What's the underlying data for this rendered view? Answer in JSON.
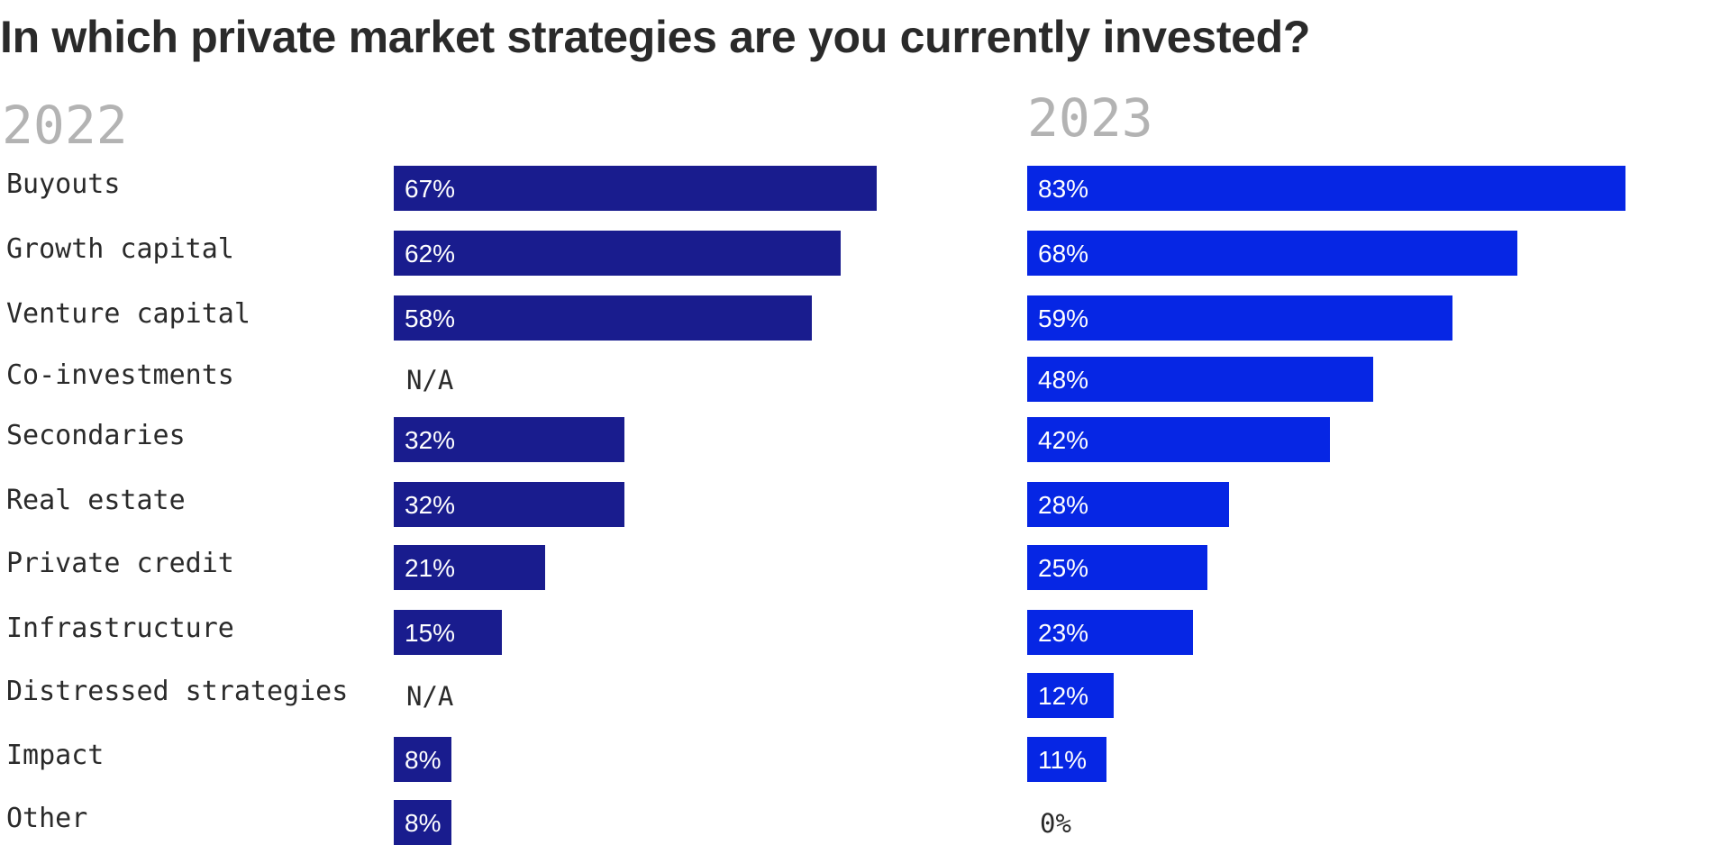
{
  "title": "In which private market strategies are you currently invested?",
  "colors": {
    "bar_2022": "#191c8e",
    "bar_2023": "#0626e4",
    "text": "#2a2a2a",
    "year_label": "#b3b3b3",
    "bar_label": "#ffffff"
  },
  "chart_data": [
    {
      "type": "bar",
      "orientation": "horizontal",
      "title": "2022",
      "categories": [
        "Buyouts",
        "Growth capital",
        "Venture capital",
        "Co-investments",
        "Secondaries",
        "Real estate",
        "Private credit",
        "Infrastructure",
        "Distressed strategies",
        "Impact",
        "Other"
      ],
      "values": [
        67,
        62,
        58,
        null,
        32,
        32,
        21,
        15,
        null,
        8,
        8
      ],
      "labels": [
        "67%",
        "62%",
        "58%",
        "N/A",
        "32%",
        "32%",
        "21%",
        "15%",
        "N/A",
        "8%",
        "8%"
      ],
      "unit": "%",
      "grid": false,
      "legend": "none"
    },
    {
      "type": "bar",
      "orientation": "horizontal",
      "title": "2023",
      "categories": [
        "Buyouts",
        "Growth capital",
        "Venture capital",
        "Co-investments",
        "Secondaries",
        "Real estate",
        "Private credit",
        "Infrastructure",
        "Distressed strategies",
        "Impact",
        "Other"
      ],
      "values": [
        83,
        68,
        59,
        48,
        42,
        28,
        25,
        23,
        12,
        11,
        0
      ],
      "labels": [
        "83%",
        "68%",
        "59%",
        "48%",
        "42%",
        "28%",
        "25%",
        "23%",
        "12%",
        "11%",
        "0%"
      ],
      "unit": "%",
      "grid": false,
      "legend": "none"
    }
  ]
}
